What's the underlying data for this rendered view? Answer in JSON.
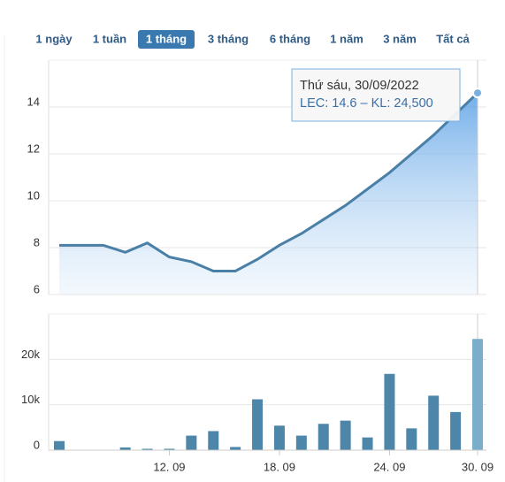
{
  "range_buttons": [
    "1 ngày",
    "1 tuần",
    "1 tháng",
    "3 tháng",
    "6 tháng",
    "1 năm",
    "3 năm",
    "Tất cả"
  ],
  "active_button": 2,
  "chart_data": [
    {
      "type": "line",
      "color": "#4a7fa6",
      "values": [
        8.1,
        8.1,
        8.1,
        7.8,
        8.2,
        7.6,
        7.4,
        7.0,
        7.0,
        7.5,
        8.1,
        8.6,
        9.2,
        9.8,
        10.5,
        11.2,
        12.0,
        12.8,
        13.7,
        14.6
      ],
      "ylim": [
        6,
        16
      ],
      "yticks": [
        6,
        8,
        10,
        12,
        14
      ],
      "grid": true,
      "tooltip": {
        "title": "Thứ sáu, 30/09/2022",
        "text": "LEC: 14.6 – KL: 24,500"
      }
    },
    {
      "type": "bar",
      "color": "#4d86a8",
      "highlight_color": "#7aaecb",
      "categories": [
        null,
        null,
        null,
        null,
        null,
        "12. 09",
        null,
        null,
        null,
        null,
        "18. 09",
        null,
        null,
        null,
        null,
        "24. 09",
        null,
        null,
        null,
        "30. 09"
      ],
      "values": [
        2000,
        0,
        0,
        600,
        300,
        300,
        3200,
        4200,
        700,
        11200,
        5400,
        3200,
        5800,
        6500,
        2800,
        16800,
        4800,
        12000,
        8400,
        24500
      ],
      "ylim": [
        0,
        30000
      ],
      "yticks": [
        0,
        {
          "value": 10000,
          "label": "10k"
        },
        {
          "value": 20000,
          "label": "20k"
        }
      ],
      "grid": true
    }
  ]
}
